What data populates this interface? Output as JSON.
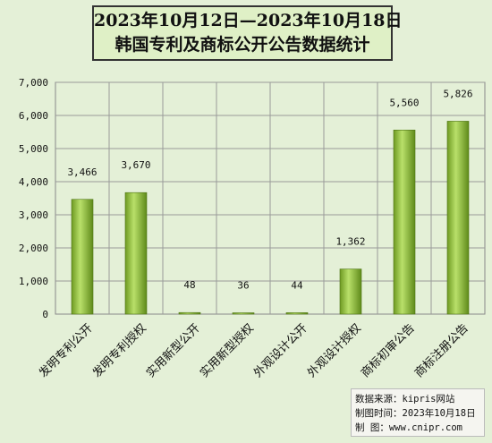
{
  "chart_data": {
    "type": "bar",
    "title": "2023年10月12日—2023年10月18日",
    "subtitle": "韩国专利及商标公开公告数据统计",
    "categories": [
      "发明专利公开",
      "发明专利授权",
      "实用新型公开",
      "实用新型授权",
      "外观设计公开",
      "外观设计授权",
      "商标初审公告",
      "商标注册公告"
    ],
    "values": [
      3466,
      3670,
      48,
      36,
      44,
      1362,
      5560,
      5826
    ],
    "value_labels": [
      "3,466",
      "3,670",
      "48",
      "36",
      "44",
      "1,362",
      "5,560",
      "5,826"
    ],
    "yticks": [
      "0",
      "1,000",
      "2,000",
      "3,000",
      "4,000",
      "5,000",
      "6,000",
      "7,000"
    ],
    "ylim": [
      0,
      7000
    ],
    "grid": true,
    "bar_color": "#8fbf3a"
  },
  "source": {
    "line1": "数据来源：kipris网站",
    "line2": "制图时间：2023年10月18日",
    "line3": "制    图：www.cnipr.com"
  }
}
